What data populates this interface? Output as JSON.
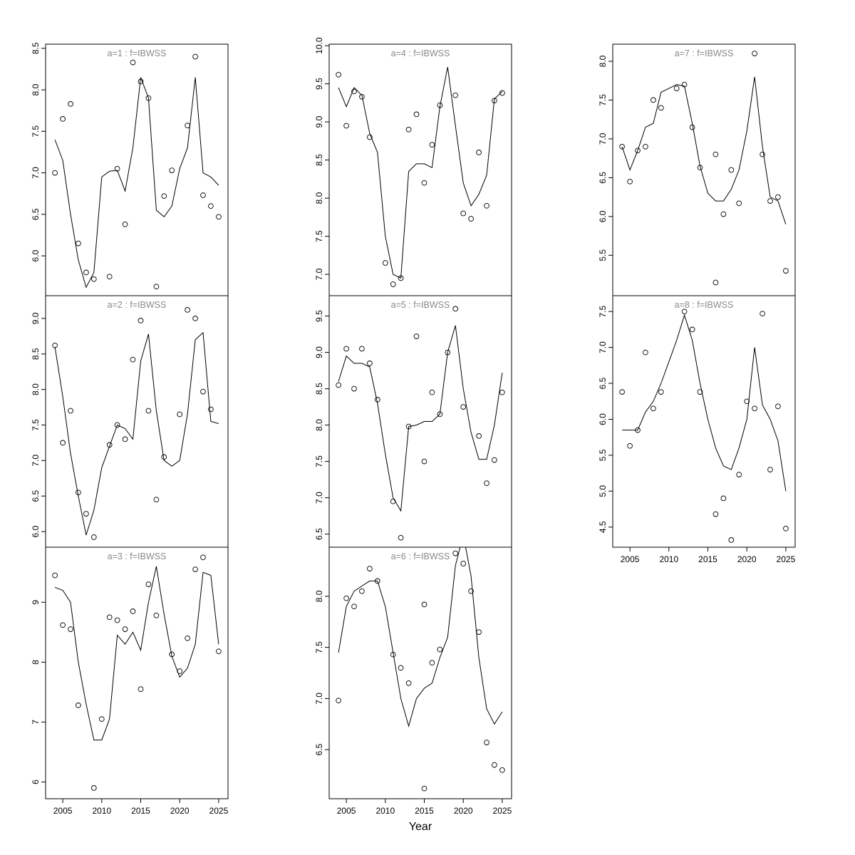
{
  "figure": {
    "xlabel": "Year",
    "background": "#ffffff",
    "axis_color": "#000000",
    "title_color": "#8a8a8a",
    "xticks": [
      2005,
      2010,
      2015,
      2020,
      2025
    ],
    "xtick_labels": [
      "2005",
      "2010",
      "2015",
      "2020",
      "2025"
    ]
  },
  "chart_data": [
    {
      "type": "scatter+line",
      "id": "a1",
      "title": "a=1 : f=IBWSS",
      "row": 0,
      "col": 0,
      "xlim": [
        2002.8,
        2026.2
      ],
      "ylim": [
        5.52,
        8.55
      ],
      "yticks": [
        6.0,
        6.5,
        7.0,
        7.5,
        8.0,
        8.5
      ],
      "ytick_labels": [
        "6.0",
        "6.5",
        "7.0",
        "7.5",
        "8.0",
        "8.5"
      ],
      "show_x_axis": false,
      "points": {
        "x": [
          2004,
          2005,
          2006,
          2007,
          2008,
          2009,
          2011,
          2012,
          2013,
          2014,
          2015,
          2016,
          2017,
          2018,
          2019,
          2021,
          2022,
          2023,
          2024,
          2025
        ],
        "y": [
          7.0,
          7.65,
          7.83,
          6.15,
          5.8,
          5.72,
          5.75,
          7.05,
          6.38,
          8.33,
          8.1,
          7.9,
          5.63,
          6.72,
          7.03,
          7.57,
          8.4,
          6.73,
          6.6,
          6.47
        ]
      },
      "line": {
        "x": [
          2004,
          2005,
          2006,
          2007,
          2008,
          2009,
          2010,
          2011,
          2012,
          2013,
          2014,
          2015,
          2016,
          2017,
          2018,
          2019,
          2020,
          2021,
          2022,
          2023,
          2024,
          2025
        ],
        "y": [
          7.4,
          7.15,
          6.5,
          5.95,
          5.62,
          5.8,
          6.95,
          7.02,
          7.03,
          6.78,
          7.3,
          8.15,
          7.9,
          6.55,
          6.47,
          6.6,
          7.05,
          7.3,
          8.15,
          7.0,
          6.95,
          6.85
        ]
      }
    },
    {
      "type": "scatter+line",
      "id": "a2",
      "title": "a=2 : f=IBWSS",
      "row": 1,
      "col": 0,
      "xlim": [
        2002.8,
        2026.2
      ],
      "ylim": [
        5.78,
        9.32
      ],
      "yticks": [
        6.0,
        6.5,
        7.0,
        7.5,
        8.0,
        8.5,
        9.0
      ],
      "ytick_labels": [
        "6.0",
        "6.5",
        "7.0",
        "7.5",
        "8.0",
        "8.5",
        "9.0"
      ],
      "show_x_axis": false,
      "points": {
        "x": [
          2004,
          2005,
          2006,
          2007,
          2008,
          2009,
          2011,
          2012,
          2013,
          2014,
          2015,
          2016,
          2017,
          2018,
          2020,
          2021,
          2022,
          2023,
          2024
        ],
        "y": [
          8.62,
          7.25,
          7.7,
          6.55,
          6.25,
          5.92,
          7.22,
          7.5,
          7.3,
          8.42,
          8.97,
          7.7,
          6.45,
          7.05,
          7.65,
          9.12,
          9.0,
          7.97,
          7.72
        ]
      },
      "line": {
        "x": [
          2004,
          2005,
          2006,
          2007,
          2008,
          2009,
          2010,
          2011,
          2012,
          2013,
          2014,
          2015,
          2016,
          2017,
          2018,
          2019,
          2020,
          2021,
          2022,
          2023,
          2024,
          2025
        ],
        "y": [
          8.6,
          7.9,
          7.1,
          6.5,
          5.95,
          6.3,
          6.9,
          7.2,
          7.5,
          7.45,
          7.3,
          8.4,
          8.78,
          7.7,
          7.0,
          6.92,
          7.0,
          7.65,
          8.7,
          8.8,
          7.55,
          7.52
        ]
      }
    },
    {
      "type": "scatter+line",
      "id": "a3",
      "title": "a=3 : f=IBWSS",
      "row": 2,
      "col": 0,
      "xlim": [
        2002.8,
        2026.2
      ],
      "ylim": [
        5.72,
        9.92
      ],
      "yticks": [
        6,
        7,
        8,
        9
      ],
      "ytick_labels": [
        "6",
        "7",
        "8",
        "9"
      ],
      "show_x_axis": true,
      "points": {
        "x": [
          2004,
          2005,
          2006,
          2007,
          2009,
          2010,
          2011,
          2012,
          2013,
          2014,
          2015,
          2016,
          2017,
          2019,
          2020,
          2021,
          2022,
          2023,
          2025
        ],
        "y": [
          9.45,
          8.62,
          8.55,
          7.28,
          5.9,
          7.05,
          8.75,
          8.7,
          8.55,
          8.85,
          7.55,
          9.3,
          8.78,
          8.13,
          7.85,
          8.4,
          9.55,
          9.75,
          8.18
        ]
      },
      "line": {
        "x": [
          2004,
          2005,
          2006,
          2007,
          2008,
          2009,
          2010,
          2011,
          2012,
          2013,
          2014,
          2015,
          2016,
          2017,
          2018,
          2019,
          2020,
          2021,
          2022,
          2023,
          2024,
          2025
        ],
        "y": [
          9.25,
          9.2,
          9.0,
          8.0,
          7.3,
          6.7,
          6.7,
          7.05,
          8.45,
          8.3,
          8.5,
          8.2,
          9.0,
          9.6,
          8.8,
          8.1,
          7.75,
          7.9,
          8.3,
          9.5,
          9.45,
          8.3
        ]
      }
    },
    {
      "type": "scatter+line",
      "id": "a4",
      "title": "a=4 : f=IBWSS",
      "row": 0,
      "col": 1,
      "xlim": [
        2002.8,
        2026.2
      ],
      "ylim": [
        6.72,
        10.02
      ],
      "yticks": [
        7.0,
        7.5,
        8.0,
        8.5,
        9.0,
        9.5,
        10.0
      ],
      "ytick_labels": [
        "7.0",
        "7.5",
        "8.0",
        "8.5",
        "9.0",
        "9.5",
        "10.0"
      ],
      "show_x_axis": false,
      "points": {
        "x": [
          2004,
          2005,
          2006,
          2007,
          2008,
          2010,
          2011,
          2012,
          2013,
          2014,
          2015,
          2016,
          2017,
          2019,
          2020,
          2021,
          2022,
          2023,
          2024,
          2025
        ],
        "y": [
          9.62,
          8.95,
          9.4,
          9.33,
          8.8,
          7.15,
          6.87,
          6.95,
          8.9,
          9.1,
          8.2,
          8.7,
          9.22,
          9.35,
          7.8,
          7.73,
          8.6,
          7.9,
          9.28,
          9.38
        ]
      },
      "line": {
        "x": [
          2004,
          2005,
          2006,
          2007,
          2008,
          2009,
          2010,
          2011,
          2012,
          2013,
          2014,
          2015,
          2016,
          2017,
          2018,
          2019,
          2020,
          2021,
          2022,
          2023,
          2024,
          2025
        ],
        "y": [
          9.45,
          9.2,
          9.45,
          9.35,
          8.85,
          8.6,
          7.5,
          7.0,
          6.95,
          8.35,
          8.45,
          8.45,
          8.4,
          9.2,
          9.72,
          8.95,
          8.2,
          7.9,
          8.05,
          8.3,
          9.3,
          9.4
        ]
      }
    },
    {
      "type": "scatter+line",
      "id": "a5",
      "title": "a=5 : f=IBWSS",
      "row": 1,
      "col": 1,
      "xlim": [
        2002.8,
        2026.2
      ],
      "ylim": [
        6.32,
        9.78
      ],
      "yticks": [
        6.5,
        7.0,
        7.5,
        8.0,
        8.5,
        9.0,
        9.5
      ],
      "ytick_labels": [
        "6.5",
        "7.0",
        "7.5",
        "8.0",
        "8.5",
        "9.0",
        "9.5"
      ],
      "show_x_axis": false,
      "points": {
        "x": [
          2004,
          2005,
          2006,
          2007,
          2008,
          2009,
          2011,
          2012,
          2013,
          2014,
          2015,
          2016,
          2017,
          2018,
          2019,
          2020,
          2022,
          2023,
          2024,
          2025
        ],
        "y": [
          8.55,
          9.05,
          8.5,
          9.05,
          8.85,
          8.35,
          6.95,
          6.45,
          7.98,
          9.22,
          7.5,
          8.45,
          8.15,
          9.0,
          9.6,
          8.25,
          7.85,
          7.2,
          7.52,
          8.45
        ]
      },
      "line": {
        "x": [
          2004,
          2005,
          2006,
          2007,
          2008,
          2009,
          2010,
          2011,
          2012,
          2013,
          2014,
          2015,
          2016,
          2017,
          2018,
          2019,
          2020,
          2021,
          2022,
          2023,
          2024,
          2025
        ],
        "y": [
          8.6,
          8.95,
          8.85,
          8.85,
          8.8,
          8.3,
          7.6,
          7.0,
          6.82,
          7.98,
          8.0,
          8.05,
          8.05,
          8.15,
          9.0,
          9.37,
          8.5,
          7.9,
          7.53,
          7.53,
          8.0,
          8.72
        ]
      }
    },
    {
      "type": "scatter+line",
      "id": "a6",
      "title": "a=6 : f=IBWSS",
      "row": 2,
      "col": 1,
      "xlim": [
        2002.8,
        2026.2
      ],
      "ylim": [
        6.02,
        8.48
      ],
      "yticks": [
        6.5,
        7.0,
        7.5,
        8.0
      ],
      "ytick_labels": [
        "6.5",
        "7.0",
        "7.5",
        "8.0"
      ],
      "show_x_axis": true,
      "points": {
        "x": [
          2004,
          2005,
          2006,
          2007,
          2008,
          2009,
          2011,
          2012,
          2013,
          2015,
          2015,
          2016,
          2017,
          2019,
          2020,
          2021,
          2022,
          2023,
          2024,
          2025
        ],
        "y": [
          6.98,
          7.98,
          7.9,
          8.05,
          8.27,
          8.15,
          7.43,
          7.3,
          7.15,
          7.92,
          6.12,
          7.35,
          7.48,
          8.42,
          8.32,
          8.05,
          7.65,
          6.57,
          6.35,
          6.3
        ]
      },
      "line": {
        "x": [
          2004,
          2005,
          2006,
          2007,
          2008,
          2009,
          2010,
          2011,
          2012,
          2013,
          2014,
          2015,
          2016,
          2017,
          2018,
          2019,
          2020,
          2021,
          2022,
          2023,
          2024,
          2025
        ],
        "y": [
          7.45,
          7.9,
          8.05,
          8.1,
          8.15,
          8.15,
          7.9,
          7.45,
          7.0,
          6.73,
          7.0,
          7.1,
          7.15,
          7.4,
          7.6,
          8.3,
          8.6,
          8.2,
          7.4,
          6.9,
          6.75,
          6.87
        ]
      }
    },
    {
      "type": "scatter+line",
      "id": "a7",
      "title": "a=7 : f=IBWSS",
      "row": 0,
      "col": 2,
      "xlim": [
        2002.8,
        2026.2
      ],
      "ylim": [
        4.98,
        8.22
      ],
      "yticks": [
        5.5,
        6.0,
        6.5,
        7.0,
        7.5,
        8.0
      ],
      "ytick_labels": [
        "5.5",
        "6.0",
        "6.5",
        "7.0",
        "7.5",
        "8.0"
      ],
      "show_x_axis": false,
      "points": {
        "x": [
          2004,
          2005,
          2006,
          2007,
          2008,
          2009,
          2011,
          2012,
          2013,
          2014,
          2016,
          2016,
          2017,
          2018,
          2019,
          2021,
          2022,
          2023,
          2024,
          2025
        ],
        "y": [
          6.9,
          6.45,
          6.85,
          6.9,
          7.5,
          7.4,
          7.65,
          7.7,
          7.15,
          6.63,
          6.8,
          5.15,
          6.03,
          6.6,
          6.17,
          8.1,
          6.8,
          6.2,
          6.25,
          5.3
        ]
      },
      "line": {
        "x": [
          2004,
          2005,
          2006,
          2007,
          2008,
          2009,
          2010,
          2011,
          2012,
          2013,
          2014,
          2015,
          2016,
          2017,
          2018,
          2019,
          2020,
          2021,
          2022,
          2023,
          2024,
          2025
        ],
        "y": [
          6.9,
          6.6,
          6.85,
          7.15,
          7.2,
          7.6,
          7.65,
          7.7,
          7.68,
          7.2,
          6.65,
          6.3,
          6.2,
          6.2,
          6.35,
          6.6,
          7.1,
          7.8,
          6.9,
          6.25,
          6.2,
          5.9
        ]
      }
    },
    {
      "type": "scatter+line",
      "id": "a8",
      "title": "a=8 : f=IBWSS",
      "row": 1,
      "col": 2,
      "xlim": [
        2002.8,
        2026.2
      ],
      "ylim": [
        4.22,
        7.72
      ],
      "yticks": [
        4.5,
        5.0,
        5.5,
        6.0,
        6.5,
        7.0,
        7.5
      ],
      "ytick_labels": [
        "4.5",
        "5.0",
        "5.5",
        "6.0",
        "6.5",
        "7.0",
        "7.5"
      ],
      "show_x_axis": true,
      "points": {
        "x": [
          2004,
          2005,
          2006,
          2007,
          2008,
          2009,
          2012,
          2013,
          2014,
          2016,
          2017,
          2018,
          2019,
          2020,
          2021,
          2022,
          2023,
          2024,
          2025
        ],
        "y": [
          6.38,
          5.63,
          5.85,
          6.93,
          6.15,
          6.38,
          7.5,
          7.25,
          6.38,
          4.68,
          4.9,
          4.32,
          5.23,
          6.25,
          6.15,
          7.47,
          5.3,
          6.18,
          4.48
        ]
      },
      "line": {
        "x": [
          2004,
          2005,
          2006,
          2007,
          2008,
          2009,
          2010,
          2011,
          2012,
          2013,
          2014,
          2015,
          2016,
          2017,
          2018,
          2019,
          2020,
          2021,
          2022,
          2023,
          2024,
          2025
        ],
        "y": [
          5.85,
          5.85,
          5.85,
          6.1,
          6.25,
          6.5,
          6.8,
          7.1,
          7.45,
          7.1,
          6.5,
          6.0,
          5.6,
          5.35,
          5.3,
          5.6,
          6.0,
          7.0,
          6.2,
          6.0,
          5.7,
          5.0
        ]
      }
    }
  ]
}
